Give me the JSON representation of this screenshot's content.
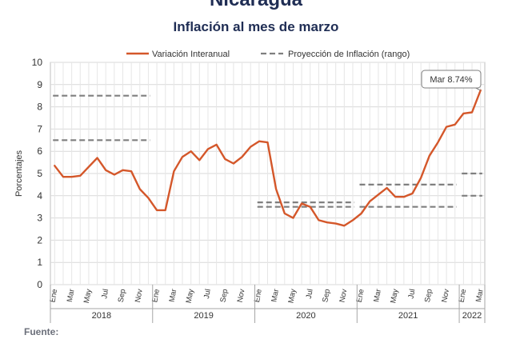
{
  "header": {
    "title": "Nicaragua",
    "subtitle": "Inflación al mes de marzo"
  },
  "footer": {
    "source_label": "Fuente:"
  },
  "chart_data": {
    "type": "line",
    "title": "Inflación al mes de marzo",
    "ylabel": "Porcentajes",
    "ylim": [
      0,
      10
    ],
    "yticks": [
      0,
      1,
      2,
      3,
      4,
      5,
      6,
      7,
      8,
      9,
      10
    ],
    "grid": true,
    "legend_position": "top",
    "month_ticks": [
      "Ene",
      "Mar",
      "May",
      "Jul",
      "Sep",
      "Nov"
    ],
    "year_labels": [
      "2018",
      "2019",
      "2020",
      "2021",
      "2022"
    ],
    "month_ticks_2022": [
      "Ene",
      "Mar"
    ],
    "x": [
      "2018-01",
      "2018-02",
      "2018-03",
      "2018-04",
      "2018-05",
      "2018-06",
      "2018-07",
      "2018-08",
      "2018-09",
      "2018-10",
      "2018-11",
      "2018-12",
      "2019-01",
      "2019-02",
      "2019-03",
      "2019-04",
      "2019-05",
      "2019-06",
      "2019-07",
      "2019-08",
      "2019-09",
      "2019-10",
      "2019-11",
      "2019-12",
      "2020-01",
      "2020-02",
      "2020-03",
      "2020-04",
      "2020-05",
      "2020-06",
      "2020-07",
      "2020-08",
      "2020-09",
      "2020-10",
      "2020-11",
      "2020-12",
      "2021-01",
      "2021-02",
      "2021-03",
      "2021-04",
      "2021-05",
      "2021-06",
      "2021-07",
      "2021-08",
      "2021-09",
      "2021-10",
      "2021-11",
      "2021-12",
      "2022-01",
      "2022-02",
      "2022-03"
    ],
    "series": [
      {
        "name": "Variación Interanual",
        "color": "#d4572a",
        "style": "solid",
        "values": [
          5.35,
          4.85,
          4.85,
          4.9,
          5.3,
          5.7,
          5.15,
          4.95,
          5.15,
          5.1,
          4.3,
          3.9,
          3.35,
          3.35,
          5.1,
          5.75,
          6.0,
          5.6,
          6.1,
          6.3,
          5.65,
          5.45,
          5.75,
          6.2,
          6.45,
          6.4,
          4.3,
          3.2,
          3.0,
          3.65,
          3.5,
          2.9,
          2.8,
          2.75,
          2.65,
          2.9,
          3.2,
          3.75,
          4.05,
          4.35,
          3.95,
          3.95,
          4.1,
          4.8,
          5.8,
          6.4,
          7.1,
          7.2,
          7.7,
          7.75,
          8.74
        ]
      }
    ],
    "projection": {
      "name": "Proyección de Inflación (rango)",
      "color": "#7f7f7f",
      "style": "dashed",
      "ranges": [
        {
          "start": "2018-01",
          "end": "2018-12",
          "low": 6.5,
          "high": 8.5
        },
        {
          "start": "2020-01",
          "end": "2020-12",
          "low": 3.5,
          "high": 3.7
        },
        {
          "start": "2021-01",
          "end": "2021-12",
          "low": 3.5,
          "high": 4.5
        },
        {
          "start": "2022-01",
          "end": "2022-03",
          "low": 4.0,
          "high": 5.0
        }
      ]
    },
    "annotation": {
      "text": "Mar 8.74%",
      "x": "2022-03",
      "y": 8.74
    }
  }
}
